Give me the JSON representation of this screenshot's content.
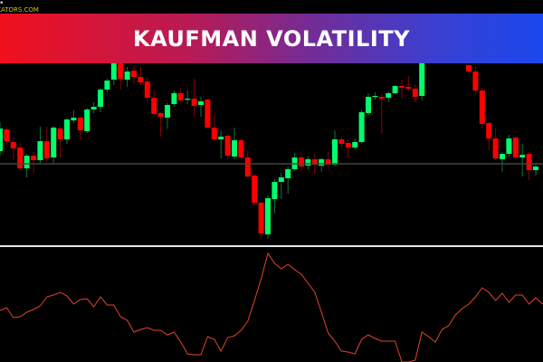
{
  "banner": {
    "title": "KAUFMAN VOLATILITY"
  },
  "watermark": "ICATORS.COM",
  "colors": {
    "bull": "#00ff6a",
    "bear": "#ff0000",
    "indicator": "#e0452a",
    "separator": "#e6e6e6",
    "level_line": "#444444",
    "banner_start": "#f0101e",
    "banner_end": "#1a48ee"
  },
  "chart_data": [
    {
      "type": "candlestick",
      "title": "",
      "ylim": [
        1.1,
        1.13
      ],
      "horizontal_level": 1.1119,
      "grid": false,
      "candles_ohlc": [
        [
          1.1133,
          1.1165,
          1.1128,
          1.1158
        ],
        [
          1.1157,
          1.116,
          1.114,
          1.1144
        ],
        [
          1.1143,
          1.1147,
          1.1124,
          1.1136
        ],
        [
          1.1137,
          1.1142,
          1.1112,
          1.1114
        ],
        [
          1.1114,
          1.113,
          1.1104,
          1.1128
        ],
        [
          1.1128,
          1.1132,
          1.1109,
          1.1123
        ],
        [
          1.1123,
          1.116,
          1.112,
          1.1144
        ],
        [
          1.1144,
          1.116,
          1.1121,
          1.1125
        ],
        [
          1.1126,
          1.1161,
          1.112,
          1.1159
        ],
        [
          1.1158,
          1.116,
          1.1126,
          1.1146
        ],
        [
          1.1146,
          1.117,
          1.1141,
          1.1168
        ],
        [
          1.1167,
          1.1178,
          1.1164,
          1.117
        ],
        [
          1.117,
          1.1171,
          1.1145,
          1.1156
        ],
        [
          1.1155,
          1.1181,
          1.1153,
          1.1179
        ],
        [
          1.1179,
          1.1187,
          1.1175,
          1.1182
        ],
        [
          1.1182,
          1.1203,
          1.1176,
          1.1201
        ],
        [
          1.1201,
          1.1213,
          1.1198,
          1.1211
        ],
        [
          1.1212,
          1.124,
          1.1206,
          1.123
        ],
        [
          1.123,
          1.1235,
          1.1201,
          1.1213
        ],
        [
          1.1212,
          1.1226,
          1.1204,
          1.1221
        ],
        [
          1.1222,
          1.1228,
          1.1207,
          1.1215
        ],
        [
          1.1215,
          1.1226,
          1.1206,
          1.1209
        ],
        [
          1.121,
          1.1215,
          1.1188,
          1.1192
        ],
        [
          1.1192,
          1.12,
          1.1172,
          1.1174
        ],
        [
          1.1175,
          1.1176,
          1.1149,
          1.1171
        ],
        [
          1.117,
          1.1186,
          1.1158,
          1.1184
        ],
        [
          1.1185,
          1.12,
          1.1182,
          1.1197
        ],
        [
          1.1197,
          1.1203,
          1.1186,
          1.1189
        ],
        [
          1.119,
          1.12,
          1.1185,
          1.1191
        ],
        [
          1.1191,
          1.1213,
          1.1171,
          1.1183
        ],
        [
          1.1184,
          1.1193,
          1.1171,
          1.1188
        ],
        [
          1.119,
          1.1191,
          1.1158,
          1.1159
        ],
        [
          1.1159,
          1.1174,
          1.1144,
          1.1146
        ],
        [
          1.1146,
          1.1156,
          1.1125,
          1.1149
        ],
        [
          1.115,
          1.1152,
          1.1124,
          1.1128
        ],
        [
          1.1127,
          1.1159,
          1.1124,
          1.1145
        ],
        [
          1.1145,
          1.1146,
          1.1124,
          1.1126
        ],
        [
          1.1126,
          1.1134,
          1.1104,
          1.1105
        ],
        [
          1.1106,
          1.1108,
          1.1074,
          1.1076
        ],
        [
          1.1076,
          1.1078,
          1.1036,
          1.1042
        ],
        [
          1.1041,
          1.1084,
          1.1036,
          1.1081
        ],
        [
          1.108,
          1.1102,
          1.1064,
          1.1099
        ],
        [
          1.1099,
          1.1109,
          1.108,
          1.1104
        ],
        [
          1.1103,
          1.1116,
          1.1086,
          1.1113
        ],
        [
          1.1113,
          1.1131,
          1.1111,
          1.1126
        ],
        [
          1.1126,
          1.113,
          1.1111,
          1.1116
        ],
        [
          1.1117,
          1.1127,
          1.1113,
          1.1124
        ],
        [
          1.1124,
          1.113,
          1.1107,
          1.1118
        ],
        [
          1.1117,
          1.1126,
          1.111,
          1.1124
        ],
        [
          1.1124,
          1.1133,
          1.1115,
          1.1118
        ],
        [
          1.1118,
          1.1156,
          1.1116,
          1.1146
        ],
        [
          1.1146,
          1.1148,
          1.1136,
          1.1141
        ],
        [
          1.1142,
          1.1145,
          1.1125,
          1.1137
        ],
        [
          1.1137,
          1.1147,
          1.1135,
          1.1143
        ],
        [
          1.1143,
          1.1178,
          1.1141,
          1.1176
        ],
        [
          1.1175,
          1.1197,
          1.1173,
          1.1193
        ],
        [
          1.1193,
          1.1198,
          1.119,
          1.1194
        ],
        [
          1.1193,
          1.1196,
          1.1152,
          1.1191
        ],
        [
          1.1192,
          1.1199,
          1.1187,
          1.1197
        ],
        [
          1.1197,
          1.1206,
          1.1196,
          1.1205
        ],
        [
          1.1205,
          1.1212,
          1.1191,
          1.1203
        ],
        [
          1.1204,
          1.1216,
          1.12,
          1.1202
        ],
        [
          1.1202,
          1.1207,
          1.1187,
          1.1193
        ],
        [
          1.1194,
          1.1235,
          1.1189,
          1.123
        ],
        null,
        null,
        null,
        null,
        null,
        null,
        [
          1.1228,
          1.1232,
          1.1219,
          1.1221
        ],
        [
          1.1221,
          1.1226,
          1.1196,
          1.12
        ],
        [
          1.12,
          1.1203,
          1.1158,
          1.1163
        ],
        [
          1.1164,
          1.1165,
          1.1134,
          1.1147
        ],
        [
          1.1147,
          1.1158,
          1.1123,
          1.1125
        ],
        [
          1.1124,
          1.1132,
          1.111,
          1.113
        ],
        [
          1.113,
          1.1151,
          1.1126,
          1.1147
        ],
        [
          1.1148,
          1.115,
          1.1124,
          1.1126
        ],
        [
          1.1126,
          1.1141,
          1.1105,
          1.1129
        ],
        [
          1.113,
          1.1132,
          1.1101,
          1.1112
        ],
        [
          1.1112,
          1.1118,
          1.1106,
          1.1116
        ]
      ]
    },
    {
      "type": "line",
      "title": "",
      "ylim": [
        0.0,
        0.012
      ],
      "values": [
        0.0057,
        0.006,
        0.0049,
        0.005,
        0.0055,
        0.0058,
        0.0062,
        0.0072,
        0.0074,
        0.0077,
        0.0073,
        0.0064,
        0.0069,
        0.007,
        0.0061,
        0.0072,
        0.0063,
        0.0063,
        0.005,
        0.0046,
        0.0033,
        0.0036,
        0.0038,
        0.0035,
        0.0035,
        0.003,
        0.0033,
        0.0022,
        0.0009,
        0.0008,
        0.0008,
        0.0028,
        0.0025,
        0.0012,
        0.0027,
        0.0029,
        0.0035,
        0.0045,
        0.0068,
        0.0092,
        0.012,
        0.0109,
        0.0103,
        0.0108,
        0.0102,
        0.0097,
        0.0087,
        0.0077,
        0.0055,
        0.0032,
        0.0023,
        0.0012,
        0.0011,
        0.0009,
        0.0025,
        0.003,
        0.0026,
        0.0023,
        0.0023,
        0.0023,
        0.0,
        0.0,
        0.0002,
        0.0033,
        0.0028,
        0.0022,
        0.0036,
        0.004,
        0.0052,
        0.0059,
        0.0064,
        0.0072,
        0.0082,
        0.0077,
        0.0068,
        0.0076,
        0.0066,
        0.0074,
        0.0074,
        0.0064,
        0.0071,
        0.0064
      ]
    }
  ]
}
